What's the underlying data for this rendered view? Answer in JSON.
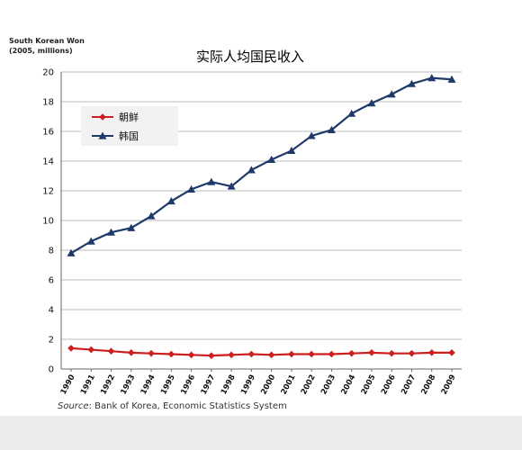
{
  "chart_data": {
    "type": "line",
    "title": "实际人均国民收入",
    "ylabel_line1": "South Korean Won",
    "ylabel_line2": "(2005, millions)",
    "source_prefix": "Source",
    "source_text": ": Bank of Korea, Economic Statistics System",
    "ylim": [
      0,
      20
    ],
    "yticks": [
      "0",
      "2",
      "4",
      "6",
      "8",
      "10",
      "12",
      "14",
      "16",
      "18",
      "20"
    ],
    "grid": true,
    "legend_position": "top-left",
    "x": [
      "1990",
      "1991",
      "1992",
      "1993",
      "1994",
      "1995",
      "1996",
      "1997",
      "1998",
      "1999",
      "2000",
      "2001",
      "2002",
      "2003",
      "2004",
      "2005",
      "2006",
      "2007",
      "2008",
      "2009"
    ],
    "series": [
      {
        "name": "朝鲜",
        "color": "#cc1f1f",
        "marker": "diamond",
        "values": [
          1.4,
          1.3,
          1.2,
          1.1,
          1.05,
          1.0,
          0.95,
          0.9,
          0.95,
          1.0,
          0.95,
          1.0,
          1.0,
          1.0,
          1.05,
          1.1,
          1.05,
          1.05,
          1.1,
          1.1
        ]
      },
      {
        "name": "韩国",
        "color": "#1f3a68",
        "marker": "triangle",
        "values": [
          7.8,
          8.6,
          9.2,
          9.5,
          10.3,
          11.3,
          12.1,
          12.6,
          12.3,
          13.4,
          14.1,
          14.7,
          15.7,
          16.1,
          17.2,
          17.9,
          18.5,
          19.2,
          19.6,
          19.5
        ]
      }
    ]
  }
}
